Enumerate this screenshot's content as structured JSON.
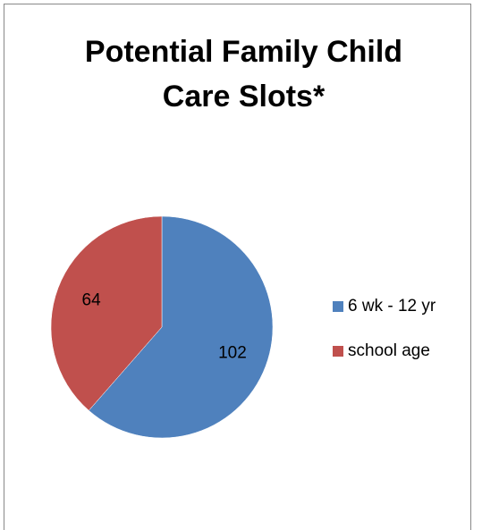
{
  "chart_data": {
    "type": "pie",
    "title": "Potential Family Child Care Slots*",
    "categories": [
      "6 wk - 12 yr",
      "school age"
    ],
    "values": [
      102,
      64
    ],
    "colors": [
      "#4f81bd",
      "#c0504d"
    ],
    "legend": "right"
  }
}
